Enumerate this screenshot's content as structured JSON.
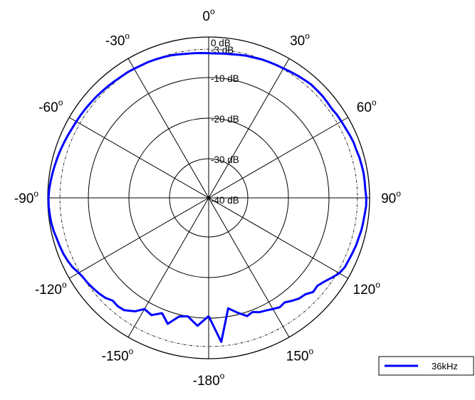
{
  "chart_data": {
    "type": "line",
    "subtype": "polar",
    "angle_unit": "degrees",
    "angle_zero": "top",
    "angle_direction": "clockwise",
    "angle_ticks": [
      0,
      30,
      60,
      90,
      120,
      150,
      -180,
      -150,
      -120,
      -90,
      -60,
      -30
    ],
    "angle_tick_labels": [
      "0",
      "30",
      "60",
      "90",
      "120",
      "150",
      "-180",
      "-150",
      "-120",
      "-90",
      "-60",
      "-30"
    ],
    "degree_symbol": "o",
    "radial_unit": "dB",
    "radial_range": [
      -40,
      0
    ],
    "radial_rings": [
      -40,
      -30,
      -20,
      -10,
      0
    ],
    "radial_reference_ring": -3,
    "radial_labels": [
      "0 dB",
      "-3 dB",
      "-10 dB",
      "-20 dB",
      "-30 dB",
      "-40 dB"
    ],
    "radial_label_values": [
      0,
      -3,
      -10,
      -20,
      -30,
      -40
    ],
    "grid": true,
    "legend": {
      "placement": "bottom-right"
    },
    "series": [
      {
        "name": "36kHz",
        "color": "#0000ff",
        "angles": [
          -180,
          -175,
          -170,
          -166,
          -162,
          -158,
          -154,
          -150,
          -147,
          -143,
          -140,
          -137,
          -134,
          -131,
          -128,
          -125,
          -122,
          -120,
          -117,
          -114,
          -111,
          -108,
          -105,
          -102,
          -99,
          -96,
          -93,
          -90,
          -87,
          -84,
          -81,
          -78,
          -75,
          -72,
          -69,
          -66,
          -63,
          -60,
          -57,
          -54,
          -51,
          -48,
          -45,
          -42,
          -39,
          -36,
          -33,
          -30,
          -27,
          -24,
          -21,
          -18,
          -15,
          -12,
          -9,
          -6,
          -3,
          0,
          3,
          6,
          9,
          12,
          15,
          18,
          21,
          24,
          27,
          30,
          33,
          36,
          39,
          42,
          45,
          48,
          51,
          54,
          57,
          60,
          63,
          66,
          69,
          72,
          75,
          78,
          81,
          84,
          87,
          90,
          93,
          96,
          99,
          102,
          105,
          108,
          111,
          114,
          117,
          120,
          123,
          126,
          129,
          132,
          135,
          138,
          141,
          144,
          147,
          150,
          153,
          156,
          159,
          162,
          166,
          170,
          175,
          180
        ],
        "values": [
          -10.5,
          -8.0,
          -10.0,
          -9.5,
          -7.0,
          -9.0,
          -7.5,
          -8.0,
          -6.3,
          -5.0,
          -4.8,
          -5.0,
          -4.2,
          -3.8,
          -3.5,
          -3.2,
          -3.0,
          -2.7,
          -2.0,
          -1.6,
          -1.3,
          -1.1,
          -0.9,
          -0.6,
          -0.4,
          -0.3,
          -0.2,
          -0.2,
          -0.3,
          -0.5,
          -0.7,
          -0.9,
          -1.1,
          -1.3,
          -1.5,
          -1.7,
          -1.9,
          -2.0,
          -2.1,
          -2.2,
          -2.3,
          -2.4,
          -2.5,
          -2.6,
          -2.7,
          -2.8,
          -2.8,
          -2.9,
          -3.0,
          -3.0,
          -3.1,
          -3.2,
          -3.3,
          -3.5,
          -3.7,
          -3.8,
          -3.9,
          -4.0,
          -4.0,
          -3.9,
          -3.8,
          -3.6,
          -3.4,
          -3.3,
          -3.1,
          -3.0,
          -2.9,
          -2.8,
          -2.6,
          -2.4,
          -2.2,
          -2.0,
          -2.0,
          -2.0,
          -2.1,
          -2.2,
          -2.0,
          -1.9,
          -1.8,
          -1.6,
          -1.4,
          -1.4,
          -1.2,
          -1.1,
          -1.0,
          -1.0,
          -1.0,
          -0.8,
          -0.8,
          -1.0,
          -1.1,
          -1.2,
          -1.4,
          -1.5,
          -1.7,
          -1.9,
          -2.0,
          -2.5,
          -3.5,
          -4.5,
          -5.2,
          -5.0,
          -6.0,
          -6.3,
          -7.0,
          -7.8,
          -7.5,
          -8.0,
          -8.5,
          -8.8,
          -9.5,
          -9.0,
          -10.5,
          -12.0,
          -4.0,
          -10.5
        ]
      }
    ]
  }
}
